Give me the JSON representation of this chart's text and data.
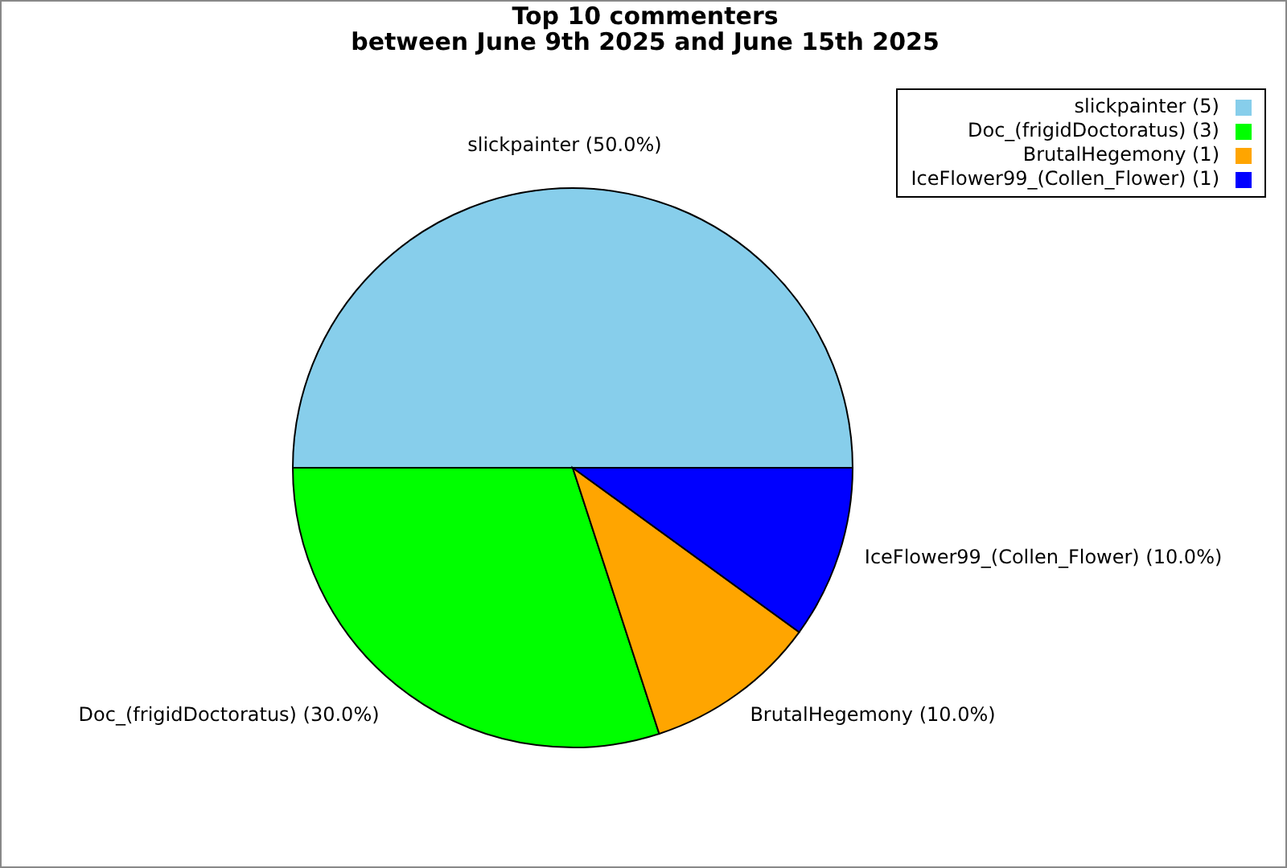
{
  "chart_data": {
    "type": "pie",
    "title": "Top 10 commenters\nbetween June 9th 2025 and June 15th 2025",
    "categories": [
      "slickpainter (5)",
      "Doc_(frigidDoctoratus) (3)",
      "BrutalHegemony (1)",
      "IceFlower99_(Collen_Flower) (1)"
    ],
    "values": [
      50,
      30,
      10,
      10
    ],
    "colors": [
      "#87ceeb",
      "#00ff00",
      "#ffa500",
      "#0000ff"
    ],
    "value_labels": [
      "slickpainter (50.0%)",
      "Doc_(frigidDoctoratus) (30.0%)",
      "BrutalHegemony (10.0%)",
      "IceFlower99_(Collen_Flower) (10.0%)"
    ],
    "legend": "top right"
  }
}
